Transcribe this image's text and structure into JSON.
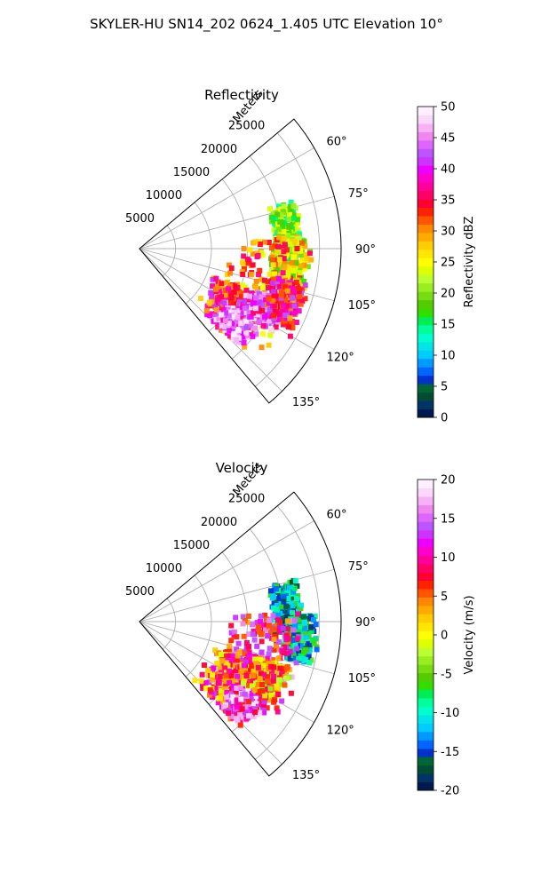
{
  "figure": {
    "title": "SKYLER-HU  SN14_202  0624_1.405 UTC Elevation 10°"
  },
  "chart_data": [
    {
      "type": "heatmap",
      "projection": "polar-sector",
      "title": "Reflectivity",
      "radial_label": "Meters",
      "radial_ticks": [
        "5000",
        "10000",
        "15000",
        "20000",
        "25000"
      ],
      "radial_tick_values": [
        5000,
        10000,
        15000,
        20000,
        25000
      ],
      "rmax": 28000,
      "angular_ticks": [
        "60°",
        "75°",
        "90°",
        "105°",
        "120°",
        "135°"
      ],
      "angular_tick_values": [
        60,
        75,
        90,
        105,
        120,
        135
      ],
      "theta_range_deg": [
        50,
        140
      ],
      "grid": true,
      "colorbar": {
        "label": "Reflectivity dBZ",
        "ticks": [
          "0",
          "5",
          "10",
          "15",
          "20",
          "25",
          "30",
          "35",
          "40",
          "45",
          "50"
        ],
        "vmin": 0,
        "vmax": 50,
        "colors": [
          "#001a4d",
          "#003366",
          "#004d33",
          "#006633",
          "#0033cc",
          "#0066ff",
          "#0099ff",
          "#00ccff",
          "#00e6e6",
          "#00ffcc",
          "#00ff99",
          "#00ee55",
          "#33dd00",
          "#55cc00",
          "#77dd11",
          "#99ee22",
          "#bbff33",
          "#ddff00",
          "#ffff00",
          "#ffe600",
          "#ffcc00",
          "#ffaa00",
          "#ff8800",
          "#ff5500",
          "#ff2200",
          "#ff0033",
          "#ff0066",
          "#ff0099",
          "#ff00cc",
          "#ee00ff",
          "#cc33ff",
          "#bb55ff",
          "#dd66ff",
          "#ee88ee",
          "#f5b3f5",
          "#fbd8fb",
          "#fff0ff"
        ]
      },
      "echo_regions": [
        {
          "r": 20500,
          "theta": 82,
          "dr": 2200,
          "dt": 9,
          "value": 20
        },
        {
          "r": 21000,
          "theta": 95,
          "dr": 3200,
          "dt": 10,
          "value": 22
        },
        {
          "r": 18000,
          "theta": 107,
          "dr": 6500,
          "dt": 22,
          "value": 30
        },
        {
          "r": 15500,
          "theta": 123,
          "dr": 5000,
          "dt": 12,
          "value": 35
        },
        {
          "r": 17000,
          "theta": 128,
          "dr": 3500,
          "dt": 6,
          "value": 44
        },
        {
          "r": 19000,
          "theta": 116,
          "dr": 3000,
          "dt": 6,
          "value": 42
        },
        {
          "r": 21500,
          "theta": 110,
          "dr": 3000,
          "dt": 8,
          "value": 36
        }
      ]
    },
    {
      "type": "heatmap",
      "projection": "polar-sector",
      "title": "Velocity",
      "radial_label": "Meters",
      "radial_ticks": [
        "5000",
        "10000",
        "15000",
        "20000",
        "25000"
      ],
      "radial_tick_values": [
        5000,
        10000,
        15000,
        20000,
        25000
      ],
      "rmax": 28000,
      "angular_ticks": [
        "60°",
        "75°",
        "90°",
        "105°",
        "120°",
        "135°"
      ],
      "angular_tick_values": [
        60,
        75,
        90,
        105,
        120,
        135
      ],
      "theta_range_deg": [
        50,
        140
      ],
      "grid": true,
      "colorbar": {
        "label": "Velocity (m/s)",
        "ticks": [
          "-20",
          "-15",
          "-10",
          "-5",
          "0",
          "5",
          "10",
          "15",
          "20"
        ],
        "vmin": -20,
        "vmax": 20,
        "colors": [
          "#001a4d",
          "#003366",
          "#004d33",
          "#006633",
          "#0033cc",
          "#0066ff",
          "#0099ff",
          "#00ccff",
          "#00e6e6",
          "#00ffcc",
          "#00ff99",
          "#00ee55",
          "#33dd00",
          "#55cc00",
          "#77dd11",
          "#99ee22",
          "#bbff33",
          "#ddff00",
          "#ffff00",
          "#ffe600",
          "#ffcc00",
          "#ffaa00",
          "#ff8800",
          "#ff5500",
          "#ff2200",
          "#ff0033",
          "#ff0066",
          "#ff0099",
          "#ff00cc",
          "#ee00ff",
          "#cc33ff",
          "#bb55ff",
          "#dd66ff",
          "#ee88ee",
          "#f5b3f5",
          "#fbd8fb",
          "#fff0ff"
        ]
      },
      "echo_regions": [
        {
          "r": 20500,
          "theta": 85,
          "dr": 2500,
          "dt": 10,
          "value": -12
        },
        {
          "r": 22500,
          "theta": 96,
          "dr": 2500,
          "dt": 8,
          "value": -11
        },
        {
          "r": 17500,
          "theta": 107,
          "dr": 6000,
          "dt": 20,
          "value": 10
        },
        {
          "r": 15500,
          "theta": 123,
          "dr": 5000,
          "dt": 14,
          "value": 6
        },
        {
          "r": 18500,
          "theta": 128,
          "dr": 3000,
          "dt": 8,
          "value": 13
        },
        {
          "r": 19500,
          "theta": 114,
          "dr": 3000,
          "dt": 7,
          "value": 3
        }
      ]
    }
  ]
}
